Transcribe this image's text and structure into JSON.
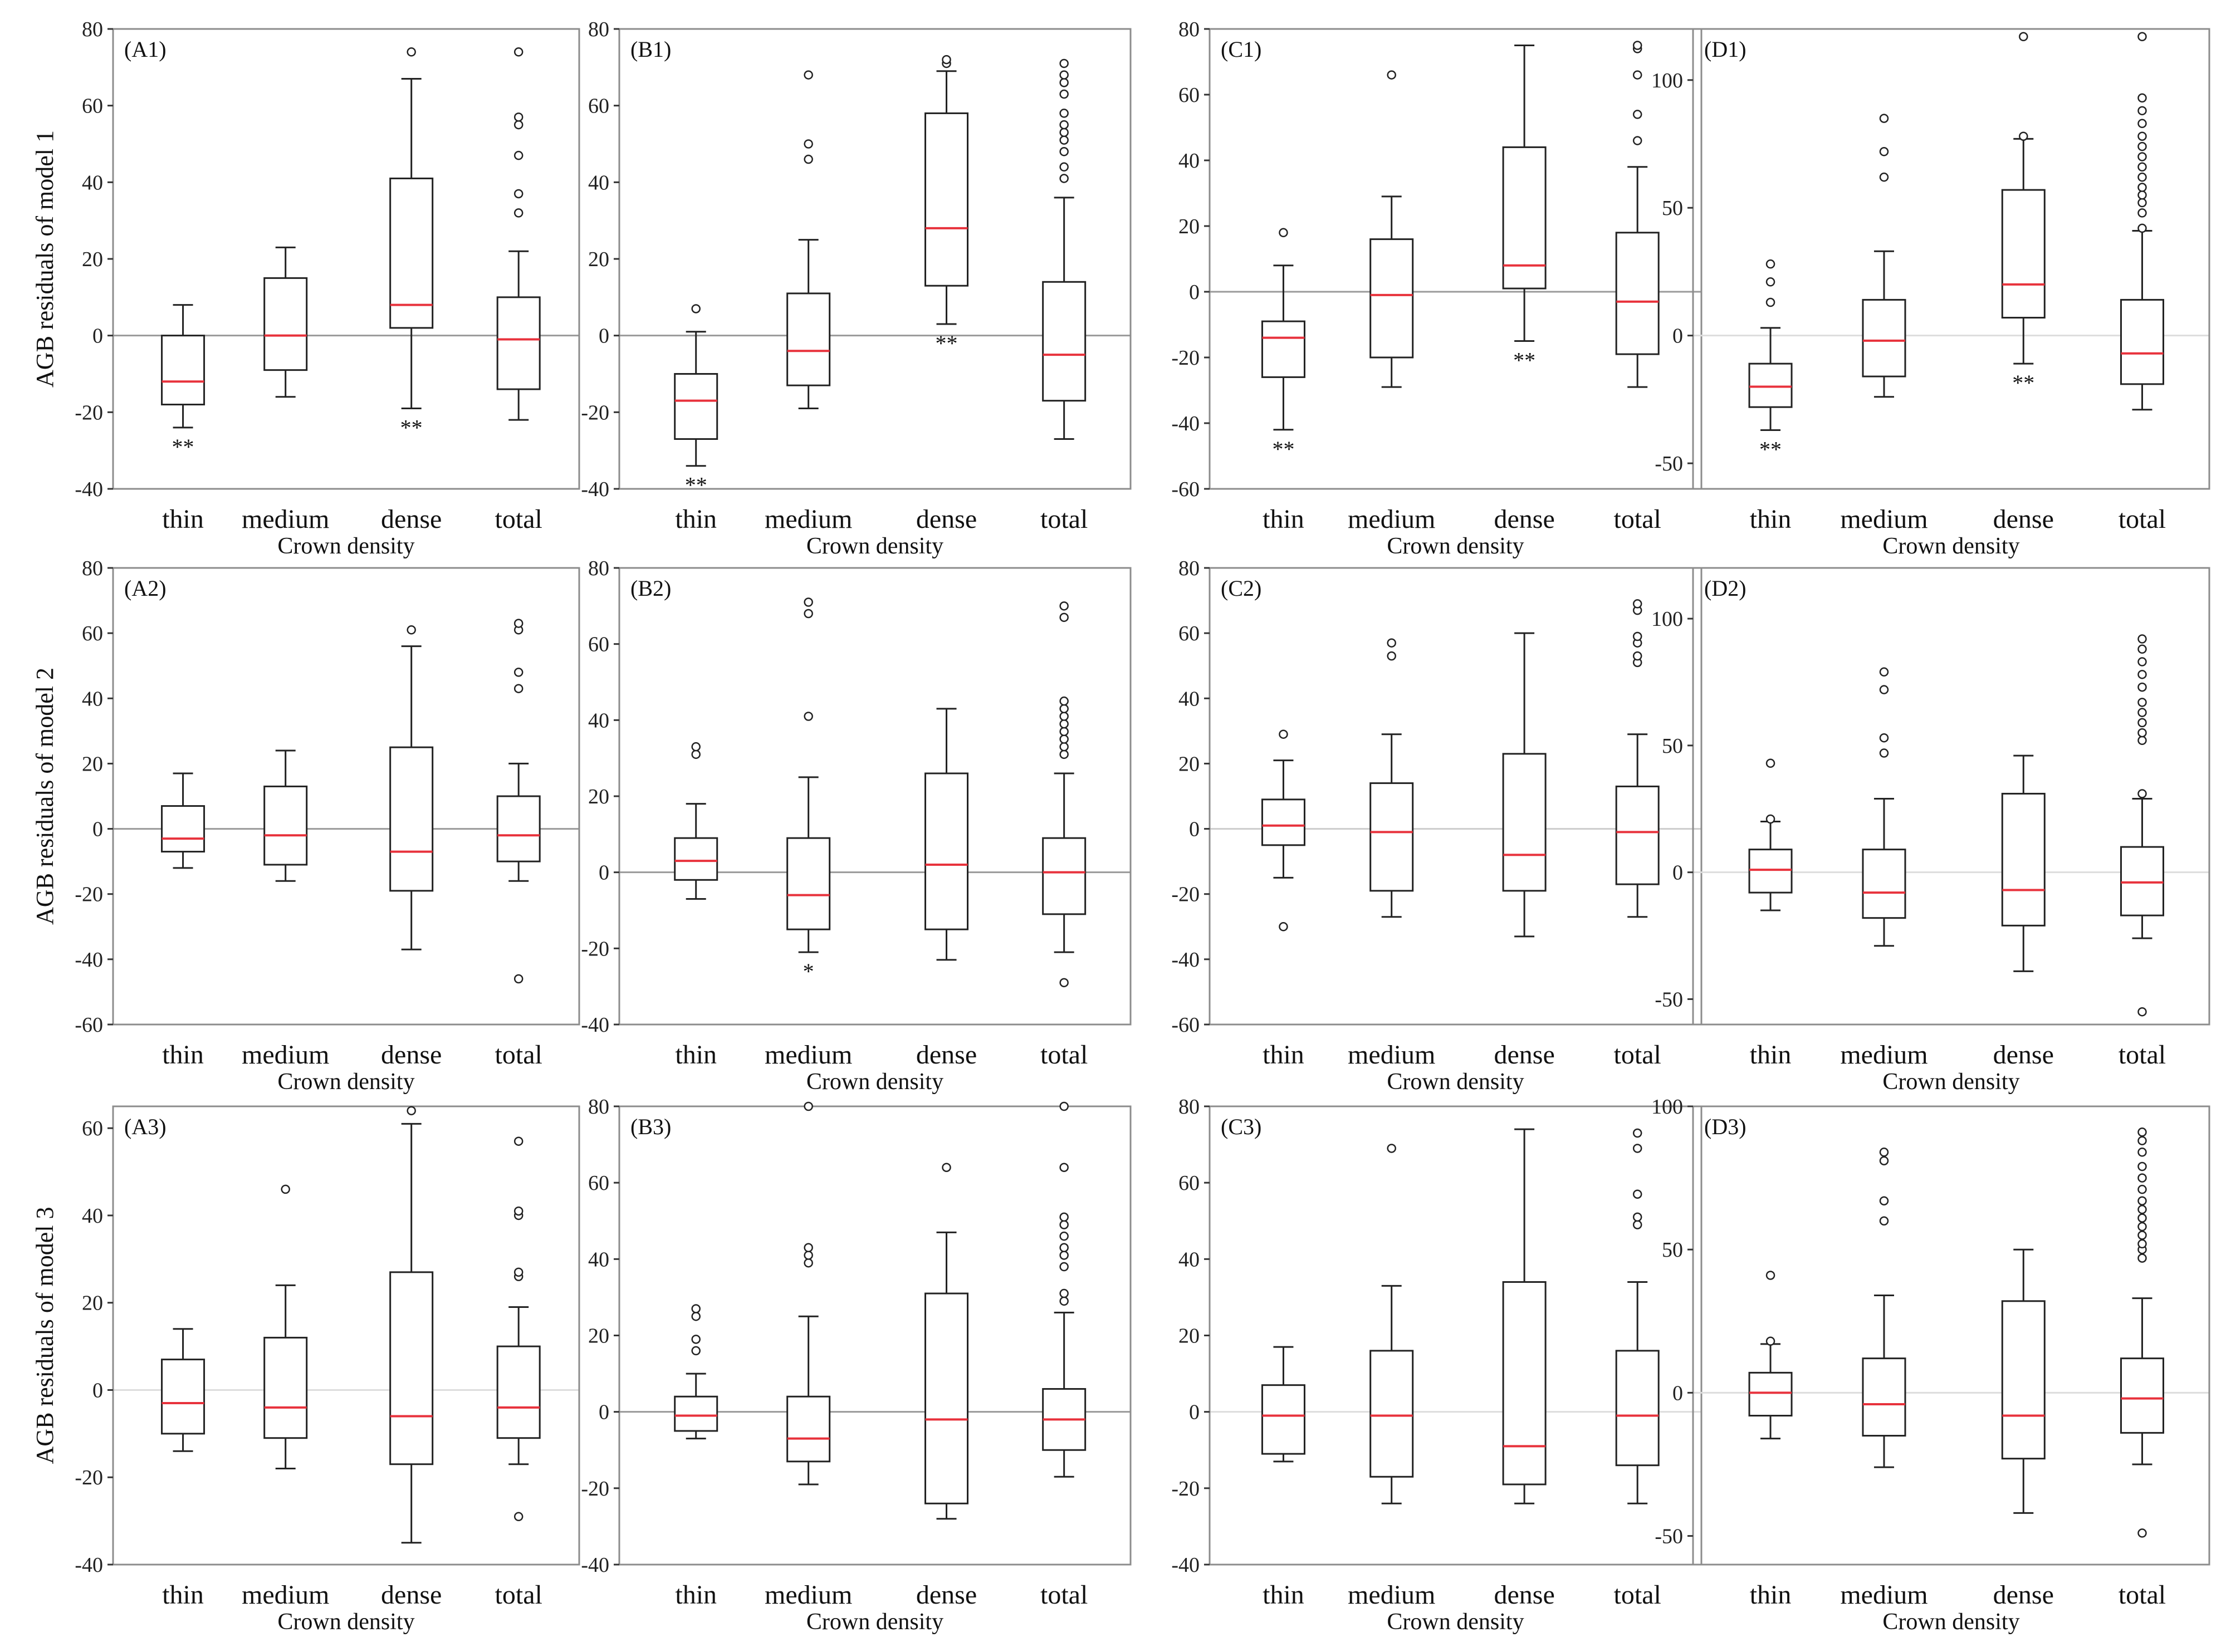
{
  "figure": {
    "x_axis_title": "Crown density",
    "categories": [
      "thin",
      "medium",
      "dense",
      "total"
    ],
    "row_labels": [
      "AGB residuals of model 1",
      "AGB residuals of model 2",
      "AGB residuals of model 3"
    ]
  },
  "colors": {
    "median": "#e8323c",
    "frame": "#8c8c8c",
    "zero_line": "#a8a8a8",
    "box": "#222222"
  },
  "chart_data": [
    {
      "label": "(A1)",
      "type": "box",
      "row": 1,
      "col": 1,
      "ylim": [
        -40,
        80
      ],
      "yticks": [
        -40,
        -20,
        0,
        20,
        40,
        60,
        80
      ],
      "zero_color": "#9a9a9a",
      "boxes": [
        {
          "q1": -18,
          "med": -12,
          "q3": 0,
          "lo": -24,
          "hi": 8,
          "out": [],
          "sig": "**"
        },
        {
          "q1": -9,
          "med": 0,
          "q3": 15,
          "lo": -16,
          "hi": 23,
          "out": [],
          "sig": ""
        },
        {
          "q1": 2,
          "med": 8,
          "q3": 41,
          "lo": -19,
          "hi": 67,
          "out": [
            74
          ],
          "sig": "**"
        },
        {
          "q1": -14,
          "med": -1,
          "q3": 10,
          "lo": -22,
          "hi": 22,
          "out": [
            32,
            37,
            47,
            55,
            57,
            74
          ],
          "sig": ""
        }
      ]
    },
    {
      "label": "(B1)",
      "type": "box",
      "row": 1,
      "col": 2,
      "ylim": [
        -40,
        80
      ],
      "yticks": [
        -40,
        -20,
        0,
        20,
        40,
        60,
        80
      ],
      "zero_color": "#9a9a9a",
      "boxes": [
        {
          "q1": -27,
          "med": -17,
          "q3": -10,
          "lo": -34,
          "hi": 1,
          "out": [
            7
          ],
          "sig": "**"
        },
        {
          "q1": -13,
          "med": -4,
          "q3": 11,
          "lo": -19,
          "hi": 25,
          "out": [
            46,
            50,
            68
          ],
          "sig": ""
        },
        {
          "q1": 13,
          "med": 28,
          "q3": 58,
          "lo": 3,
          "hi": 69,
          "out": [
            71,
            72
          ],
          "sig": "**"
        },
        {
          "q1": -17,
          "med": -5,
          "q3": 14,
          "lo": -27,
          "hi": 36,
          "out": [
            41,
            44,
            48,
            51,
            53,
            55,
            58,
            63,
            66,
            68,
            71
          ],
          "sig": ""
        }
      ]
    },
    {
      "label": "(C1)",
      "type": "box",
      "row": 1,
      "col": 3,
      "ylim": [
        -60,
        80
      ],
      "yticks": [
        -60,
        -40,
        -20,
        0,
        20,
        40,
        60,
        80
      ],
      "zero_color": "#9a9a9a",
      "boxes": [
        {
          "q1": -26,
          "med": -14,
          "q3": -9,
          "lo": -42,
          "hi": 8,
          "out": [
            18
          ],
          "sig": "**"
        },
        {
          "q1": -20,
          "med": -1,
          "q3": 16,
          "lo": -29,
          "hi": 29,
          "out": [
            66
          ],
          "sig": ""
        },
        {
          "q1": 1,
          "med": 8,
          "q3": 44,
          "lo": -15,
          "hi": 75,
          "out": [],
          "sig": "**"
        },
        {
          "q1": -19,
          "med": -3,
          "q3": 18,
          "lo": -29,
          "hi": 38,
          "out": [
            46,
            54,
            66,
            74,
            75
          ],
          "sig": ""
        }
      ]
    },
    {
      "label": "(D1)",
      "type": "box",
      "row": 1,
      "col": 4,
      "ylim": [
        -60,
        120
      ],
      "yticks": [
        -50,
        0,
        50,
        100
      ],
      "zero_color": "#dddddd",
      "boxes": [
        {
          "q1": -28,
          "med": -20,
          "q3": -11,
          "lo": -37,
          "hi": 3,
          "out": [
            13,
            21,
            28
          ],
          "sig": "**"
        },
        {
          "q1": -16,
          "med": -2,
          "q3": 14,
          "lo": -24,
          "hi": 33,
          "out": [
            62,
            72,
            85
          ],
          "sig": ""
        },
        {
          "q1": 7,
          "med": 20,
          "q3": 57,
          "lo": -11,
          "hi": 77,
          "out": [
            78,
            117
          ],
          "sig": "**"
        },
        {
          "q1": -19,
          "med": -7,
          "q3": 14,
          "lo": -29,
          "hi": 41,
          "out": [
            42,
            48,
            52,
            55,
            58,
            62,
            66,
            70,
            74,
            78,
            83,
            88,
            93,
            117
          ],
          "sig": ""
        }
      ]
    },
    {
      "label": "(A2)",
      "type": "box",
      "row": 2,
      "col": 1,
      "ylim": [
        -60,
        80
      ],
      "yticks": [
        -60,
        -40,
        -20,
        0,
        20,
        40,
        60,
        80
      ],
      "zero_color": "#9a9a9a",
      "boxes": [
        {
          "q1": -7,
          "med": -3,
          "q3": 7,
          "lo": -12,
          "hi": 17,
          "out": [],
          "sig": ""
        },
        {
          "q1": -11,
          "med": -2,
          "q3": 13,
          "lo": -16,
          "hi": 24,
          "out": [],
          "sig": ""
        },
        {
          "q1": -19,
          "med": -7,
          "q3": 25,
          "lo": -37,
          "hi": 56,
          "out": [
            61
          ],
          "sig": ""
        },
        {
          "q1": -10,
          "med": -2,
          "q3": 10,
          "lo": -16,
          "hi": 20,
          "out": [
            -46,
            43,
            48,
            61,
            63
          ],
          "sig": ""
        }
      ]
    },
    {
      "label": "(B2)",
      "type": "box",
      "row": 2,
      "col": 2,
      "ylim": [
        -40,
        80
      ],
      "yticks": [
        -40,
        -20,
        0,
        20,
        40,
        60,
        80
      ],
      "zero_color": "#9a9a9a",
      "boxes": [
        {
          "q1": -2,
          "med": 3,
          "q3": 9,
          "lo": -7,
          "hi": 18,
          "out": [
            31,
            33
          ],
          "sig": ""
        },
        {
          "q1": -15,
          "med": -6,
          "q3": 9,
          "lo": -21,
          "hi": 25,
          "out": [
            41,
            68,
            71
          ],
          "sig": "*"
        },
        {
          "q1": -15,
          "med": 2,
          "q3": 26,
          "lo": -23,
          "hi": 43,
          "out": [],
          "sig": ""
        },
        {
          "q1": -11,
          "med": 0,
          "q3": 9,
          "lo": -21,
          "hi": 26,
          "out": [
            -29,
            31,
            33,
            35,
            37,
            39,
            41,
            43,
            45,
            67,
            70
          ],
          "sig": ""
        }
      ]
    },
    {
      "label": "(C2)",
      "type": "box",
      "row": 2,
      "col": 3,
      "ylim": [
        -60,
        80
      ],
      "yticks": [
        -60,
        -40,
        -20,
        0,
        20,
        40,
        60,
        80
      ],
      "zero_color": "#cccccc",
      "boxes": [
        {
          "q1": -5,
          "med": 1,
          "q3": 9,
          "lo": -15,
          "hi": 21,
          "out": [
            -30,
            29
          ],
          "sig": ""
        },
        {
          "q1": -19,
          "med": -1,
          "q3": 14,
          "lo": -27,
          "hi": 29,
          "out": [
            53,
            57
          ],
          "sig": ""
        },
        {
          "q1": -19,
          "med": -8,
          "q3": 23,
          "lo": -33,
          "hi": 60,
          "out": [],
          "sig": ""
        },
        {
          "q1": -17,
          "med": -1,
          "q3": 13,
          "lo": -27,
          "hi": 29,
          "out": [
            51,
            53,
            57,
            59,
            67,
            69
          ],
          "sig": ""
        }
      ]
    },
    {
      "label": "(D2)",
      "type": "box",
      "row": 2,
      "col": 4,
      "ylim": [
        -60,
        120
      ],
      "yticks": [
        -50,
        0,
        50,
        100
      ],
      "zero_color": "#dddddd",
      "boxes": [
        {
          "q1": -8,
          "med": 1,
          "q3": 9,
          "lo": -15,
          "hi": 20,
          "out": [
            21,
            43
          ],
          "sig": ""
        },
        {
          "q1": -18,
          "med": -8,
          "q3": 9,
          "lo": -29,
          "hi": 29,
          "out": [
            47,
            53,
            72,
            79
          ],
          "sig": ""
        },
        {
          "q1": -21,
          "med": -7,
          "q3": 31,
          "lo": -39,
          "hi": 46,
          "out": [],
          "sig": ""
        },
        {
          "q1": -17,
          "med": -4,
          "q3": 10,
          "lo": -26,
          "hi": 29,
          "out": [
            -55,
            31,
            52,
            55,
            59,
            63,
            67,
            73,
            78,
            83,
            88,
            92
          ],
          "sig": ""
        }
      ]
    },
    {
      "label": "(A3)",
      "type": "box",
      "row": 3,
      "col": 1,
      "ylim": [
        -40,
        65
      ],
      "yticks": [
        -40,
        -20,
        0,
        20,
        40,
        60
      ],
      "zero_color": "#dddddd",
      "boxes": [
        {
          "q1": -10,
          "med": -3,
          "q3": 7,
          "lo": -14,
          "hi": 14,
          "out": [],
          "sig": ""
        },
        {
          "q1": -11,
          "med": -4,
          "q3": 12,
          "lo": -18,
          "hi": 24,
          "out": [
            46
          ],
          "sig": ""
        },
        {
          "q1": -17,
          "med": -6,
          "q3": 27,
          "lo": -35,
          "hi": 61,
          "out": [
            64
          ],
          "sig": ""
        },
        {
          "q1": -11,
          "med": -4,
          "q3": 10,
          "lo": -17,
          "hi": 19,
          "out": [
            -29,
            26,
            27,
            40,
            41,
            57
          ],
          "sig": ""
        }
      ]
    },
    {
      "label": "(B3)",
      "type": "box",
      "row": 3,
      "col": 2,
      "ylim": [
        -40,
        80
      ],
      "yticks": [
        -40,
        -20,
        0,
        20,
        40,
        60,
        80
      ],
      "zero_color": "#9a9a9a",
      "boxes": [
        {
          "q1": -5,
          "med": -1,
          "q3": 4,
          "lo": -7,
          "hi": 10,
          "out": [
            16,
            19,
            25,
            27
          ],
          "sig": ""
        },
        {
          "q1": -13,
          "med": -7,
          "q3": 4,
          "lo": -19,
          "hi": 25,
          "out": [
            39,
            41,
            43,
            80
          ],
          "sig": ""
        },
        {
          "q1": -24,
          "med": -2,
          "q3": 31,
          "lo": -28,
          "hi": 47,
          "out": [
            64
          ],
          "sig": ""
        },
        {
          "q1": -10,
          "med": -2,
          "q3": 6,
          "lo": -17,
          "hi": 26,
          "out": [
            29,
            31,
            38,
            41,
            43,
            46,
            49,
            51,
            64,
            80
          ],
          "sig": ""
        }
      ]
    },
    {
      "label": "(C3)",
      "type": "box",
      "row": 3,
      "col": 3,
      "ylim": [
        -40,
        80
      ],
      "yticks": [
        -40,
        -20,
        0,
        20,
        40,
        60,
        80
      ],
      "zero_color": "#dddddd",
      "boxes": [
        {
          "q1": -11,
          "med": -1,
          "q3": 7,
          "lo": -13,
          "hi": 17,
          "out": [],
          "sig": ""
        },
        {
          "q1": -17,
          "med": -1,
          "q3": 16,
          "lo": -24,
          "hi": 33,
          "out": [
            69
          ],
          "sig": ""
        },
        {
          "q1": -19,
          "med": -9,
          "q3": 34,
          "lo": -24,
          "hi": 74,
          "out": [],
          "sig": ""
        },
        {
          "q1": -14,
          "med": -1,
          "q3": 16,
          "lo": -24,
          "hi": 34,
          "out": [
            49,
            51,
            57,
            69,
            73
          ],
          "sig": ""
        }
      ]
    },
    {
      "label": "(D3)",
      "type": "box",
      "row": 3,
      "col": 4,
      "ylim": [
        -60,
        100
      ],
      "yticks": [
        -50,
        0,
        50,
        100
      ],
      "zero_color": "#dddddd",
      "boxes": [
        {
          "q1": -8,
          "med": 0,
          "q3": 7,
          "lo": -16,
          "hi": 17,
          "out": [
            18,
            41
          ],
          "sig": ""
        },
        {
          "q1": -15,
          "med": -4,
          "q3": 12,
          "lo": -26,
          "hi": 34,
          "out": [
            60,
            67,
            81,
            84
          ],
          "sig": ""
        },
        {
          "q1": -23,
          "med": -8,
          "q3": 32,
          "lo": -42,
          "hi": 50,
          "out": [],
          "sig": ""
        },
        {
          "q1": -14,
          "med": -2,
          "q3": 12,
          "lo": -25,
          "hi": 33,
          "out": [
            -49,
            47,
            50,
            52,
            55,
            58,
            61,
            64,
            67,
            71,
            75,
            79,
            84,
            88,
            91
          ],
          "sig": ""
        }
      ]
    }
  ]
}
